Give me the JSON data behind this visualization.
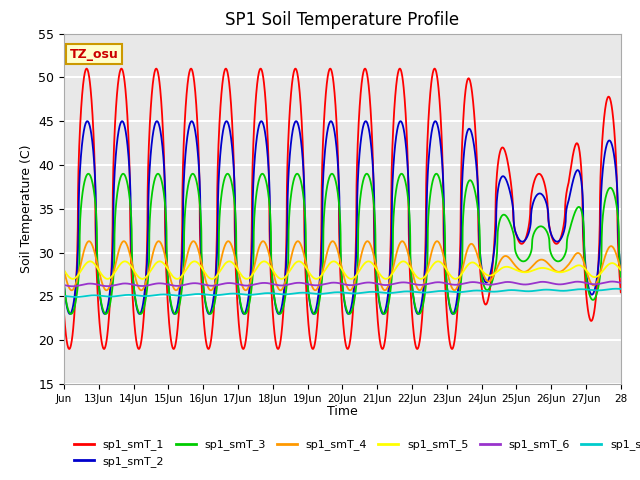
{
  "title": "SP1 Soil Temperature Profile",
  "xlabel": "Time",
  "ylabel": "Soil Temperature (C)",
  "ylim": [
    15,
    55
  ],
  "bg_color": "#e8e8e8",
  "series_colors": {
    "sp1_smT_1": "#ff0000",
    "sp1_smT_2": "#0000cc",
    "sp1_smT_3": "#00cc00",
    "sp1_smT_4": "#ff9900",
    "sp1_smT_5": "#ffff00",
    "sp1_smT_6": "#9933cc",
    "sp1_smT_7": "#00cccc"
  },
  "xtick_labels": [
    "Jun",
    "13Jun",
    "14Jun",
    "15Jun",
    "16Jun",
    "17Jun",
    "18Jun",
    "19Jun",
    "20Jun",
    "21Jun",
    "22Jun",
    "23Jun",
    "24Jun",
    "25Jun",
    "26Jun",
    "27Jun",
    "28"
  ],
  "annotation_text": "TZ_osu",
  "annotation_color": "#cc0000",
  "annotation_bg": "#ffffcc",
  "annotation_border": "#cc9900",
  "grid_color": "#ffffff",
  "yticks": [
    15,
    20,
    25,
    30,
    35,
    40,
    45,
    50,
    55
  ]
}
